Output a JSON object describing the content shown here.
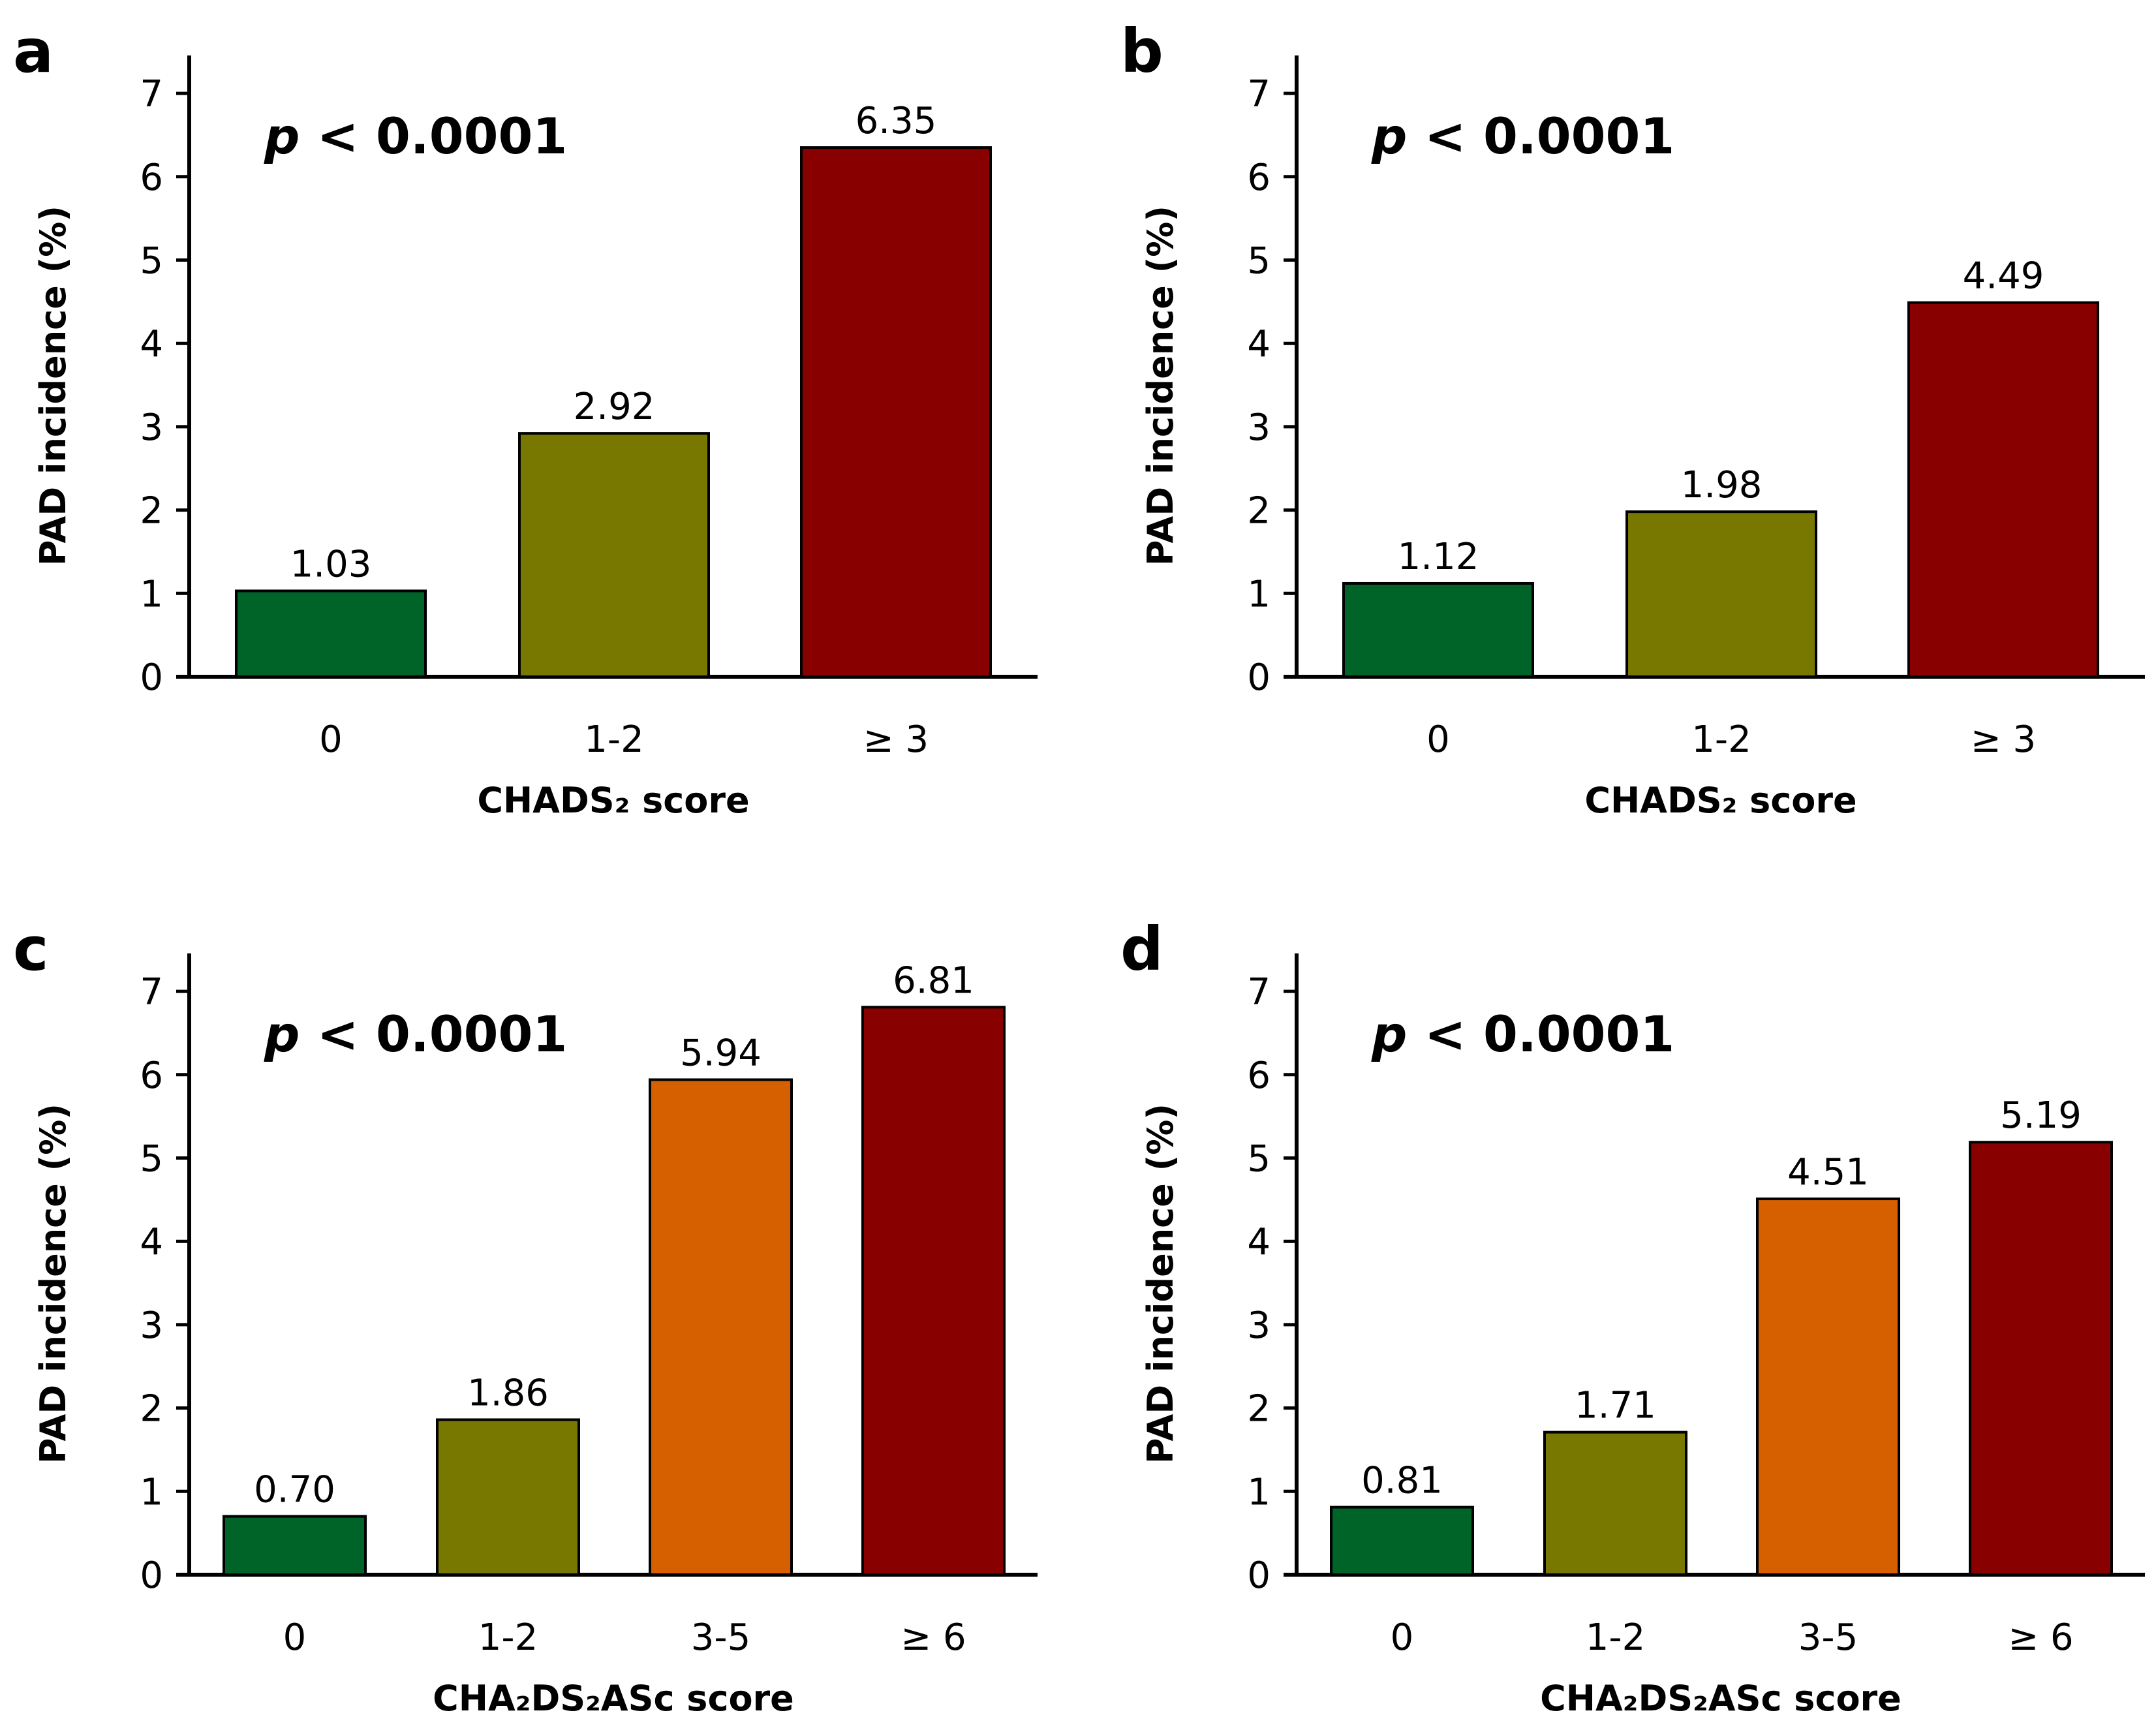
{
  "colors": {
    "green": "#006328",
    "olive": "#787800",
    "orange": "#d65f00",
    "red": "#880000"
  },
  "chart_data": [
    {
      "panel": "a",
      "type": "bar",
      "p_label": "p",
      "p_text": " < 0.0001",
      "categories": [
        "0",
        "1-2",
        "≥ 3"
      ],
      "values": [
        1.03,
        2.92,
        6.35
      ],
      "value_labels": [
        "1.03",
        "2.92",
        "6.35"
      ],
      "bar_colors": [
        "green",
        "olive",
        "red"
      ],
      "xlabel": "CHADS₂ score",
      "ylabel": "PAD incidence (%)",
      "ylim": [
        0,
        7
      ],
      "yticks": [
        "0",
        "1",
        "2",
        "3",
        "4",
        "5",
        "6",
        "7"
      ]
    },
    {
      "panel": "b",
      "type": "bar",
      "p_label": "p",
      "p_text": " < 0.0001",
      "categories": [
        "0",
        "1-2",
        "≥ 3"
      ],
      "values": [
        1.12,
        1.98,
        4.49
      ],
      "value_labels": [
        "1.12",
        "1.98",
        "4.49"
      ],
      "bar_colors": [
        "green",
        "olive",
        "red"
      ],
      "xlabel": "CHADS₂ score",
      "ylabel": "PAD incidence (%)",
      "ylim": [
        0,
        7
      ],
      "yticks": [
        "0",
        "1",
        "2",
        "3",
        "4",
        "5",
        "6",
        "7"
      ]
    },
    {
      "panel": "c",
      "type": "bar",
      "p_label": "p",
      "p_text": " < 0.0001",
      "categories": [
        "0",
        "1-2",
        "3-5",
        "≥ 6"
      ],
      "values": [
        0.7,
        1.86,
        5.94,
        6.81
      ],
      "value_labels": [
        "0.70",
        "1.86",
        "5.94",
        "6.81"
      ],
      "bar_colors": [
        "green",
        "olive",
        "orange",
        "red"
      ],
      "xlabel": "CHA₂DS₂ASc score",
      "ylabel": "PAD incidence (%)",
      "ylim": [
        0,
        7
      ],
      "yticks": [
        "0",
        "1",
        "2",
        "3",
        "4",
        "5",
        "6",
        "7"
      ]
    },
    {
      "panel": "d",
      "type": "bar",
      "p_label": "p",
      "p_text": " < 0.0001",
      "categories": [
        "0",
        "1-2",
        "3-5",
        "≥ 6"
      ],
      "values": [
        0.81,
        1.71,
        4.51,
        5.19
      ],
      "value_labels": [
        "0.81",
        "1.71",
        "4.51",
        "5.19"
      ],
      "bar_colors": [
        "green",
        "olive",
        "orange",
        "red"
      ],
      "xlabel": "CHA₂DS₂ASc score",
      "ylabel": "PAD incidence (%)",
      "ylim": [
        0,
        7
      ],
      "yticks": [
        "0",
        "1",
        "2",
        "3",
        "4",
        "5",
        "6",
        "7"
      ]
    }
  ]
}
